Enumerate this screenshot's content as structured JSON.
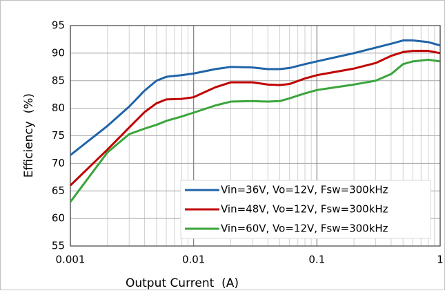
{
  "chart_data": {
    "type": "line",
    "x_label": "Output Current  (A)",
    "y_label": "Efficiency  (%)",
    "x": [
      0.001,
      0.002,
      0.003,
      0.004,
      0.005,
      0.006,
      0.008,
      0.01,
      0.015,
      0.02,
      0.03,
      0.04,
      0.05,
      0.06,
      0.08,
      0.1,
      0.2,
      0.3,
      0.4,
      0.5,
      0.6,
      0.8,
      1
    ],
    "series": [
      {
        "name": "Vin=36V, Vo=12V, Fsw=300kHz",
        "color": "#1f64a8",
        "values": [
          71.5,
          76.8,
          80.3,
          83.2,
          85,
          85.7,
          86,
          86.3,
          87.1,
          87.5,
          87.4,
          87.1,
          87.1,
          87.3,
          88,
          88.5,
          90,
          91,
          91.7,
          92.3,
          92.3,
          92,
          91.4
        ]
      },
      {
        "name": "Vin=48V, Vo=12V, Fsw=300kHz",
        "color": "#c00000",
        "values": [
          66,
          72.5,
          76.5,
          79.3,
          80.9,
          81.6,
          81.7,
          82,
          83.8,
          84.7,
          84.7,
          84.3,
          84.2,
          84.4,
          85.4,
          86,
          87.2,
          88.2,
          89.5,
          90.2,
          90.4,
          90.4,
          90
        ]
      },
      {
        "name": "Vin=60V, Vo=12V, Fsw=300kHz",
        "color": "#3aa53a",
        "values": [
          63,
          72,
          75.3,
          76.3,
          77,
          77.7,
          78.5,
          79.2,
          80.5,
          81.2,
          81.3,
          81.2,
          81.3,
          81.8,
          82.7,
          83.3,
          84.3,
          85,
          86.2,
          88,
          88.5,
          88.8,
          88.5
        ]
      }
    ],
    "xlim": [
      0.001,
      1
    ],
    "xticks": [
      0.001,
      0.01,
      0.1,
      1
    ],
    "xscale": "log",
    "ylim": [
      55,
      95
    ],
    "yticks": [
      55,
      60,
      65,
      70,
      75,
      80,
      85,
      90,
      95
    ],
    "grid": true,
    "legend": "lower right"
  }
}
